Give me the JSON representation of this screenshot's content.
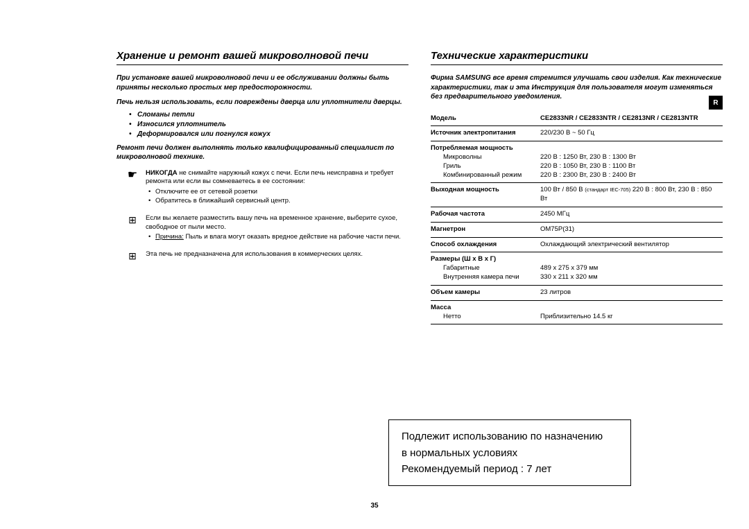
{
  "page": {
    "number": "35",
    "sideTab": "R"
  },
  "left": {
    "title": "Хранение и ремонт вашей микроволновой печи",
    "intro": "При установке вашей микроволновой печи и ее обслуживании должны быть приняты несколько простых мер предосторожности.",
    "warning": "Печь нельзя использовать, если повреждены дверца или уплотнители дверцы.",
    "bullets": [
      "Сломаны петли",
      "Износился уплотнитель",
      "Деформировался или погнулся кожух"
    ],
    "repair": "Ремонт печи должен выполнять только квалифицированный специалист по микроволновой технике.",
    "block1": {
      "lead_bold": "НИКОГДА",
      "lead_rest": " не снимайте наружный кожух с печи. Если печь неисправна и требует ремонта или если вы сомневаетесь в ее состоянии:",
      "subs": [
        "Отключите ее от сетевой розетки",
        "Обратитесь в ближайший сервисный центр."
      ]
    },
    "block2": {
      "lead": "Если вы желаете разместить вашу печь на временное хранение, выберите сухое, свободное от пыли место.",
      "reason_label": "Причина:",
      "reason_text": "Пыль и влага могут оказать вредное действие на рабочие части печи."
    },
    "block3": {
      "lead": "Эта печь не предназначена для использования в коммерческих целях."
    }
  },
  "right": {
    "title": "Технические характеристики",
    "intro": "Фирма SAMSUNG все время стремится улучшать свои изделия. Как технические характеристики, так и эта Инструкция для пользователя могут изменяться без предварительного уведомления.",
    "specs": [
      {
        "label": "Модель",
        "value": "CE2833NR / CE2833NTR / CE2813NR / CE2813NTR",
        "bold_value": true
      },
      {
        "label": "Источник электропитания",
        "value": "220/230 В ~ 50 Гц"
      },
      {
        "label": "Потребляемая мощность",
        "subs": [
          "Микроволны",
          "Гриль",
          "Комбинированный режим"
        ],
        "value_lines": [
          "220 В : 1250 Вт, 230 В : 1300 Вт",
          "220 В : 1050 Вт, 230 В : 1100 Вт",
          "220 В : 2300 Вт, 230 В : 2400 Вт"
        ]
      },
      {
        "label": "Выходная мощность",
        "value_html": "100 Вт / 850 В <small>(стандарт IEC-705)</small> 220 В : 800 Вт, 230 В : 850 Вт"
      },
      {
        "label": "Рабочая частота",
        "value": "2450 МГц"
      },
      {
        "label": "Магнетрон",
        "value": "OM75P(31)"
      },
      {
        "label": "Способ охлаждения",
        "value": "Охлаждающий электрический вентилятор"
      },
      {
        "label": "Размеры (Ш x В x Г)",
        "subs": [
          "Габаритные",
          "Внутренняя камера печи"
        ],
        "value_lines": [
          "489 x 275 x 379 мм",
          "330 x 211 x 320 мм"
        ]
      },
      {
        "label": "Объем камеры",
        "value": "23 литров"
      },
      {
        "label": "Масса",
        "subs": [
          "Нетто"
        ],
        "value_lines": [
          "Приблизительно 14.5 кг"
        ]
      }
    ],
    "usageBox": {
      "line1": "Подлежит использованию по назначению",
      "line2": "в нормальных условиях",
      "line3": "Рекомендуемый период : 7 лет"
    }
  }
}
